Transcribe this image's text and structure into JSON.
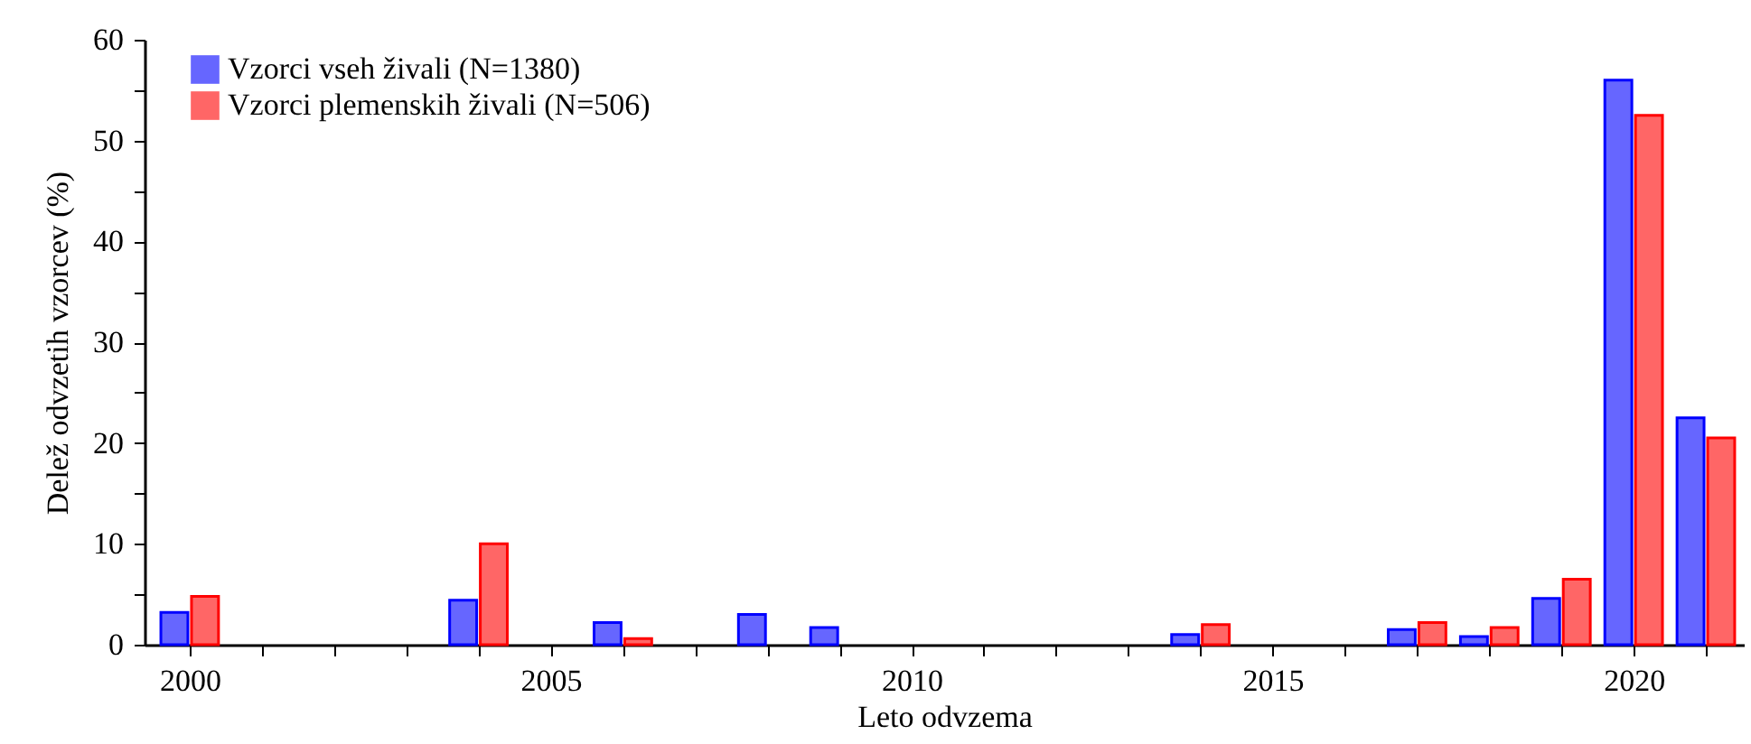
{
  "chart_data": {
    "type": "bar",
    "xlabel": "Leto  odvzema",
    "ylabel": "Delež odvzetih vzorcev (%)",
    "x": [
      2000,
      2004,
      2006,
      2008,
      2009,
      2014,
      2017,
      2018,
      2019,
      2020,
      2021
    ],
    "series": [
      {
        "name": "Vzorci vseh živali (N=1380)",
        "color": "#6666ff",
        "values": [
          3.2,
          4.4,
          2.2,
          3.0,
          1.7,
          1.0,
          1.5,
          0.8,
          4.6,
          56,
          22.5
        ]
      },
      {
        "name": "Vzorci plemenskih živali (N=506)",
        "color": "#ff6666",
        "values": [
          4.8,
          10,
          0.6,
          null,
          null,
          2.0,
          2.2,
          1.7,
          6.5,
          52.5,
          20.5
        ]
      }
    ],
    "xlim": [
      1999.5,
      2021.4
    ],
    "xticks": [
      2000,
      {
        "value": 2001,
        "label": null
      },
      {
        "value": 2002,
        "label": null
      },
      {
        "value": 2003,
        "label": null
      },
      {
        "value": 2004,
        "label": null
      },
      2005,
      {
        "value": 2006,
        "label": null
      },
      {
        "value": 2007,
        "label": null
      },
      {
        "value": 2008,
        "label": null
      },
      {
        "value": 2009,
        "label": null
      },
      2010,
      {
        "value": 2011,
        "label": null
      },
      {
        "value": 2012,
        "label": null
      },
      {
        "value": 2013,
        "label": null
      },
      {
        "value": 2014,
        "label": null
      },
      2015,
      {
        "value": 2016,
        "label": null
      },
      {
        "value": 2017,
        "label": null
      },
      {
        "value": 2018,
        "label": null
      },
      {
        "value": 2019,
        "label": null
      },
      2020,
      {
        "value": 2021,
        "label": null
      }
    ],
    "ylim": [
      0,
      60
    ],
    "yticks": [
      0,
      {
        "value": 5,
        "label": null
      },
      10,
      {
        "value": 15,
        "label": null
      },
      20,
      {
        "value": 25,
        "label": null
      },
      30,
      {
        "value": 35,
        "label": null
      },
      40,
      {
        "value": 45,
        "label": null
      },
      50,
      {
        "value": 55,
        "label": null
      },
      60
    ],
    "grid": false,
    "legend": "top left"
  }
}
